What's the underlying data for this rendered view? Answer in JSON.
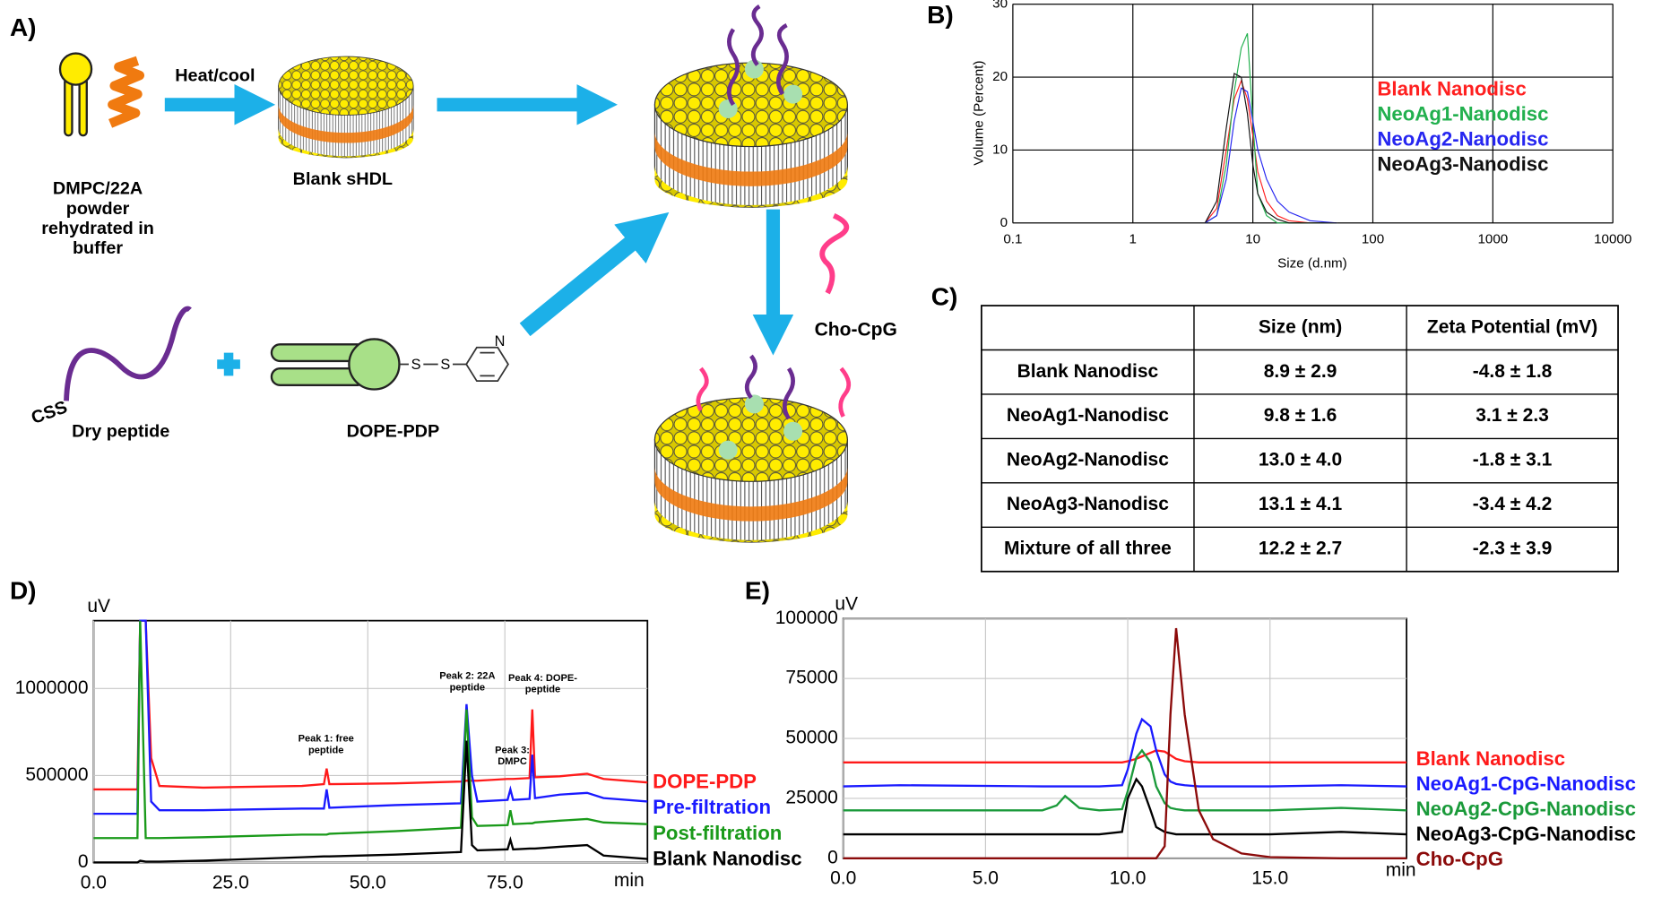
{
  "panel_labels": [
    "A)",
    "B)",
    "C)",
    "D)",
    "E)"
  ],
  "diagram": {
    "start_label": [
      "DMPC/22A",
      "powder",
      "rehydrated in",
      "buffer"
    ],
    "step_label": "Heat/cool",
    "blank_label": "Blank sHDL",
    "cpg_label": "Cho-CpG",
    "peptide_label": "Dry peptide",
    "peptide_end": "CSS",
    "lipid_label": "DOPE-PDP",
    "ring_atom": "N",
    "sulfur": [
      "S",
      "S"
    ]
  },
  "table": {
    "header": [
      "Size (nm)",
      "Zeta Potential (mV)"
    ],
    "rows": [
      [
        "Blank Nanodisc",
        "8.9 ± 2.9",
        "-4.8 ± 1.8"
      ],
      [
        "NeoAg1-Nanodisc",
        "9.8 ± 1.6",
        "3.1 ± 2.3"
      ],
      [
        "NeoAg2-Nanodisc",
        "13.0 ± 4.0",
        "-1.8 ± 3.1"
      ],
      [
        "NeoAg3-Nanodisc",
        "13.1 ± 4.1",
        "-3.4 ± 4.2"
      ],
      [
        "Mixture of all three",
        "12.2 ± 2.7",
        "-2.3 ± 3.9"
      ]
    ]
  },
  "chart_data": [
    {
      "type": "line",
      "x_label": "Size (d.nm)",
      "y_label": "Volume (Percent)",
      "xscale": "log",
      "grid": true,
      "legend": "upper right",
      "xlim": [
        0.1,
        10000
      ],
      "xticks": [
        0.1,
        1,
        10,
        100,
        1000,
        10000
      ],
      "ylim": [
        0,
        30
      ],
      "yticks": [
        0,
        10,
        20,
        30
      ],
      "x": [
        4,
        5,
        6,
        7,
        8,
        9,
        10,
        11,
        13,
        16,
        20,
        30,
        50
      ],
      "series": [
        {
          "name": "Blank Nanodisc",
          "color": "#ff2020",
          "values": [
            0,
            2,
            10,
            17,
            19.5,
            17,
            12,
            7,
            3,
            1,
            0.3,
            0,
            0
          ]
        },
        {
          "name": "NeoAg1-Nanodisc",
          "color": "#22b04e",
          "values": [
            0,
            1,
            8,
            18,
            24,
            26,
            14,
            4,
            1,
            0,
            0,
            0,
            0
          ]
        },
        {
          "name": "NeoAg2-Nanodisc",
          "color": "#2626f0",
          "values": [
            0,
            1,
            6,
            14,
            18.5,
            18,
            14,
            10,
            6,
            3,
            1.5,
            0.3,
            0
          ]
        },
        {
          "name": "NeoAg3-Nanodisc",
          "color": "#111111",
          "values": [
            0,
            3,
            13,
            20.5,
            20,
            15,
            8,
            4,
            1.5,
            0.5,
            0,
            0,
            0
          ]
        }
      ]
    },
    {
      "type": "line",
      "x_label": "min",
      "y_label": "uV",
      "grid": true,
      "legend": "right",
      "xlim": [
        0,
        101
      ],
      "xticks": [
        {
          "value": 0,
          "label": "0.0"
        },
        {
          "value": 25,
          "label": "25.0"
        },
        {
          "value": 50,
          "label": "50.0"
        },
        {
          "value": 75,
          "label": "75.0"
        }
      ],
      "ylim": [
        0,
        1390000
      ],
      "yticks": [
        0,
        500000,
        1000000
      ],
      "annotations": [
        [
          "Peak 1: free",
          "peptide"
        ],
        [
          "Peak 2: 22A",
          "peptide"
        ],
        [
          "Peak 3:",
          "DMPC"
        ],
        [
          "Peak 4: DOPE-",
          "peptide"
        ]
      ],
      "x": [
        0,
        8,
        8.5,
        9.5,
        10.5,
        12,
        20,
        38,
        42,
        42.5,
        43,
        55,
        67,
        68,
        69,
        70,
        75.5,
        76,
        76.5,
        79.5,
        80,
        80.5,
        85,
        90,
        93,
        101
      ],
      "series": [
        {
          "name": "DOPE-PDP",
          "color": "#ff1a1a",
          "values": [
            420000,
            420000,
            1390000,
            1390000,
            600000,
            440000,
            430000,
            440000,
            450000,
            540000,
            450000,
            455000,
            465000,
            470000,
            470000,
            470000,
            480000,
            480000,
            480000,
            485000,
            880000,
            490000,
            495000,
            510000,
            480000,
            460000
          ]
        },
        {
          "name": "Pre-filtration",
          "color": "#1a1aff",
          "values": [
            280000,
            280000,
            1390000,
            1390000,
            350000,
            300000,
            300000,
            310000,
            310000,
            420000,
            315000,
            330000,
            340000,
            910000,
            500000,
            350000,
            360000,
            420000,
            360000,
            365000,
            620000,
            370000,
            390000,
            400000,
            370000,
            350000
          ]
        },
        {
          "name": "Post-filtration",
          "color": "#1a9a1a",
          "values": [
            140000,
            140000,
            1390000,
            140000,
            140000,
            140000,
            145000,
            160000,
            160000,
            160000,
            165000,
            180000,
            200000,
            880000,
            260000,
            210000,
            215000,
            300000,
            220000,
            225000,
            225000,
            230000,
            240000,
            250000,
            230000,
            220000
          ]
        },
        {
          "name": "Blank Nanodisc",
          "color": "#000000",
          "values": [
            0,
            0,
            10000,
            5000,
            5000,
            5000,
            10000,
            30000,
            35000,
            35000,
            35000,
            45000,
            60000,
            700000,
            100000,
            70000,
            75000,
            130000,
            75000,
            80000,
            80000,
            80000,
            90000,
            100000,
            40000,
            20000
          ]
        }
      ]
    },
    {
      "type": "line",
      "x_label": "min",
      "y_label": "uV",
      "grid": true,
      "legend": "right",
      "xlim": [
        0,
        19.8
      ],
      "xticks": [
        {
          "value": 0,
          "label": "0.0"
        },
        {
          "value": 5,
          "label": "5.0"
        },
        {
          "value": 10,
          "label": "10.0"
        },
        {
          "value": 15,
          "label": "15.0"
        }
      ],
      "ylim": [
        0,
        100000
      ],
      "yticks": [
        0,
        25000,
        50000,
        75000,
        100000
      ],
      "x": [
        0,
        2,
        7,
        7.5,
        7.8,
        8.3,
        9,
        9.8,
        10,
        10.3,
        10.5,
        10.8,
        11,
        11.3,
        11.5,
        11.7,
        12,
        12.5,
        13,
        14,
        15,
        17.5,
        19.8
      ],
      "series": [
        {
          "name": "Blank Nanodisc",
          "color": "#ff1a1a",
          "values": [
            40000,
            40000,
            40000,
            40000,
            40000,
            40000,
            40000,
            40000,
            40500,
            41500,
            42500,
            44000,
            45000,
            44500,
            43000,
            41500,
            40500,
            40000,
            40000,
            40000,
            40000,
            40000,
            40000
          ]
        },
        {
          "name": "NeoAg1-CpG-Nanodisc",
          "color": "#1a1aff",
          "values": [
            30000,
            30500,
            30000,
            30000,
            30000,
            30000,
            30000,
            30500,
            37000,
            52000,
            58000,
            55000,
            45000,
            35000,
            32000,
            31000,
            30500,
            30000,
            30000,
            30000,
            30000,
            30500,
            30000
          ]
        },
        {
          "name": "NeoAg2-CpG-Nanodisc",
          "color": "#1a9a3a",
          "values": [
            20000,
            20000,
            20000,
            22000,
            26000,
            21000,
            20000,
            20500,
            28000,
            42000,
            45000,
            40000,
            30000,
            23000,
            21000,
            20500,
            20000,
            20000,
            20000,
            20000,
            20000,
            21000,
            20000
          ]
        },
        {
          "name": "NeoAg3-CpG-Nanodisc",
          "color": "#000000",
          "values": [
            10000,
            10000,
            10000,
            10000,
            10000,
            10000,
            10000,
            11000,
            25000,
            33000,
            30000,
            20000,
            13000,
            11000,
            10500,
            10000,
            10000,
            10000,
            10000,
            10000,
            10000,
            11000,
            10000
          ]
        },
        {
          "name": "Cho-CpG",
          "color": "#8b0a0a",
          "values": [
            0,
            0,
            0,
            0,
            0,
            0,
            0,
            0,
            0,
            0,
            0,
            0,
            0,
            5000,
            60000,
            96000,
            60000,
            20000,
            8000,
            2000,
            500,
            0,
            0
          ]
        }
      ]
    }
  ]
}
